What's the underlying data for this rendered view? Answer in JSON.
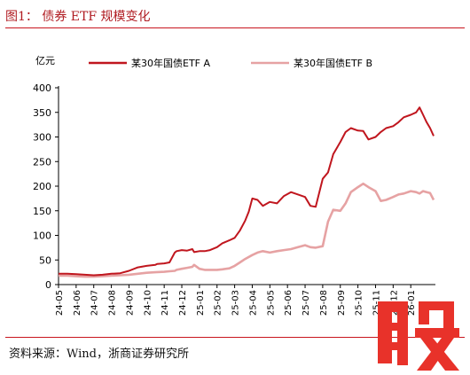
{
  "figure_title": "图1： 债券 ETF 规模变化",
  "source_note": "资料来源：Wind，浙商证券研究所",
  "watermark_label": "股",
  "colors": {
    "series_a": "#c0161e",
    "series_b": "#e6a2a3",
    "title": "#b01c22",
    "axis": "#000000",
    "watermark": "#e8322a"
  },
  "chart_data": {
    "type": "line",
    "title": "",
    "xlabel": "",
    "ylabel": "亿元",
    "ylim": [
      0,
      400
    ],
    "yticks": [
      0,
      50,
      100,
      150,
      200,
      250,
      300,
      350,
      400
    ],
    "xlim": [
      0,
      21.4
    ],
    "xticks": [
      "24-05",
      "24-06",
      "24-07",
      "24-08",
      "24-09",
      "24-10",
      "24-11",
      "24-12",
      "25-01",
      "25-02",
      "25-03",
      "25-04",
      "25-05",
      "25-06",
      "25-07",
      "25-08",
      "25-09",
      "25-10",
      "25-11",
      "25-12",
      "26-01"
    ],
    "grid": false,
    "legend": "top",
    "series": [
      {
        "name": "某30年国债ETF A",
        "x": [
          0,
          0.5,
          1,
          1.5,
          2,
          2.5,
          3,
          3.5,
          4,
          4.5,
          5,
          5.5,
          5.6,
          6,
          6.3,
          6.6,
          6.7,
          7,
          7.3,
          7.6,
          7.7,
          8,
          8.3,
          8.6,
          9,
          9.3,
          9.7,
          10,
          10.3,
          10.6,
          10.8,
          11,
          11.3,
          11.6,
          12,
          12.4,
          12.8,
          13.2,
          13.6,
          14,
          14.3,
          14.6,
          15,
          15.3,
          15.6,
          16,
          16.3,
          16.6,
          17,
          17.3,
          17.6,
          18,
          18.3,
          18.6,
          19,
          19.3,
          19.6,
          20,
          20.3,
          20.5,
          20.7,
          20.9,
          21.1,
          21.3
        ],
        "values": [
          22,
          22,
          21,
          20,
          19,
          20,
          22,
          23,
          28,
          35,
          38,
          40,
          42,
          43,
          45,
          65,
          68,
          70,
          69,
          72,
          66,
          68,
          68,
          70,
          76,
          84,
          90,
          95,
          110,
          130,
          148,
          175,
          172,
          160,
          168,
          165,
          180,
          188,
          183,
          178,
          160,
          158,
          215,
          228,
          265,
          290,
          310,
          318,
          313,
          312,
          295,
          300,
          310,
          318,
          322,
          330,
          340,
          345,
          350,
          360,
          345,
          330,
          318,
          302
        ]
      },
      {
        "name": "某30年国债ETF B",
        "x": [
          0,
          0.5,
          1,
          1.5,
          2,
          2.5,
          3,
          3.5,
          4,
          4.5,
          5,
          5.5,
          6,
          6.3,
          6.6,
          6.7,
          7,
          7.3,
          7.6,
          7.7,
          8,
          8.3,
          8.6,
          9,
          9.3,
          9.7,
          10,
          10.3,
          10.6,
          11,
          11.3,
          11.6,
          12,
          12.4,
          12.8,
          13.2,
          13.6,
          14,
          14.3,
          14.6,
          15,
          15.3,
          15.6,
          16,
          16.3,
          16.6,
          17,
          17.3,
          17.6,
          18,
          18.3,
          18.6,
          19,
          19.3,
          19.6,
          20,
          20.3,
          20.5,
          20.7,
          20.9,
          21.1,
          21.3
        ],
        "values": [
          18,
          18,
          17,
          16,
          16,
          17,
          18,
          19,
          20,
          22,
          24,
          25,
          26,
          27,
          28,
          30,
          32,
          34,
          36,
          40,
          32,
          30,
          30,
          30,
          31,
          33,
          38,
          45,
          52,
          60,
          65,
          68,
          65,
          68,
          70,
          72,
          76,
          80,
          76,
          75,
          78,
          128,
          152,
          150,
          165,
          188,
          198,
          205,
          198,
          190,
          170,
          172,
          178,
          183,
          185,
          190,
          188,
          185,
          190,
          188,
          186,
          172
        ]
      }
    ]
  }
}
